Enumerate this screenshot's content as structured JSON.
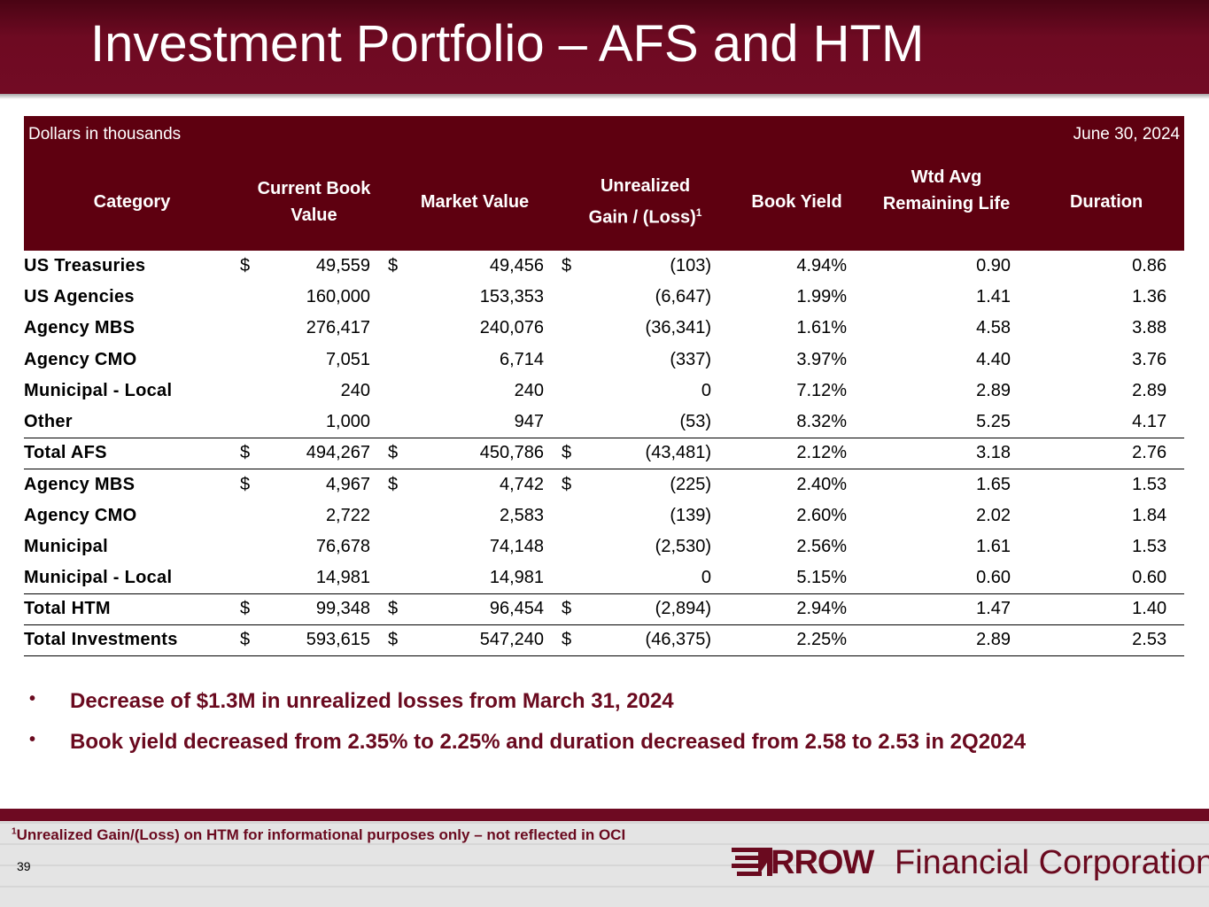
{
  "title": "Investment Portfolio – AFS and HTM",
  "table": {
    "units_label": "Dollars in thousands",
    "date_label": "June 30, 2024",
    "headers": {
      "category": "Category",
      "book_value_l1": "Current Book",
      "book_value_l2": "Value",
      "market_value": "Market Value",
      "unrealized_l1": "Unrealized",
      "unrealized_l2": "Gain / (Loss)",
      "unrealized_sup": "1",
      "book_yield": "Book Yield",
      "life_l1": "Wtd Avg",
      "life_l2": "Remaining Life",
      "duration": "Duration"
    },
    "rows": [
      {
        "category": "US Treasuries",
        "d1": "$",
        "book": "49,559",
        "d2": "$",
        "market": "49,456",
        "d3": "$",
        "gain": "(103)",
        "yield": "4.94%",
        "life": "0.90",
        "duration": "0.86"
      },
      {
        "category": "US Agencies",
        "d1": "",
        "book": "160,000",
        "d2": "",
        "market": "153,353",
        "d3": "",
        "gain": "(6,647)",
        "yield": "1.99%",
        "life": "1.41",
        "duration": "1.36"
      },
      {
        "category": "Agency MBS",
        "d1": "",
        "book": "276,417",
        "d2": "",
        "market": "240,076",
        "d3": "",
        "gain": "(36,341)",
        "yield": "1.61%",
        "life": "4.58",
        "duration": "3.88"
      },
      {
        "category": "Agency CMO",
        "d1": "",
        "book": "7,051",
        "d2": "",
        "market": "6,714",
        "d3": "",
        "gain": "(337)",
        "yield": "3.97%",
        "life": "4.40",
        "duration": "3.76"
      },
      {
        "category": "Municipal - Local",
        "d1": "",
        "book": "240",
        "d2": "",
        "market": "240",
        "d3": "",
        "gain": "0",
        "yield": "7.12%",
        "life": "2.89",
        "duration": "2.89"
      },
      {
        "category": "Other",
        "d1": "",
        "book": "1,000",
        "d2": "",
        "market": "947",
        "d3": "",
        "gain": "(53)",
        "yield": "8.32%",
        "life": "5.25",
        "duration": "4.17"
      },
      {
        "category": "Total AFS",
        "d1": "$",
        "book": "494,267",
        "d2": "$",
        "market": "450,786",
        "d3": "$",
        "gain": "(43,481)",
        "yield": "2.12%",
        "life": "3.18",
        "duration": "2.76"
      },
      {
        "category": "Agency MBS",
        "d1": "$",
        "book": "4,967",
        "d2": "$",
        "market": "4,742",
        "d3": "$",
        "gain": "(225)",
        "yield": "2.40%",
        "life": "1.65",
        "duration": "1.53"
      },
      {
        "category": "Agency CMO",
        "d1": "",
        "book": "2,722",
        "d2": "",
        "market": "2,583",
        "d3": "",
        "gain": "(139)",
        "yield": "2.60%",
        "life": "2.02",
        "duration": "1.84"
      },
      {
        "category": "Municipal",
        "d1": "",
        "book": "76,678",
        "d2": "",
        "market": "74,148",
        "d3": "",
        "gain": "(2,530)",
        "yield": "2.56%",
        "life": "1.61",
        "duration": "1.53"
      },
      {
        "category": "Municipal - Local",
        "d1": "",
        "book": "14,981",
        "d2": "",
        "market": "14,981",
        "d3": "",
        "gain": "0",
        "yield": "5.15%",
        "life": "0.60",
        "duration": "0.60"
      },
      {
        "category": "Total HTM",
        "d1": "$",
        "book": "99,348",
        "d2": "$",
        "market": "96,454",
        "d3": "$",
        "gain": "(2,894)",
        "yield": "2.94%",
        "life": "1.47",
        "duration": "1.40"
      },
      {
        "category": "Total Investments",
        "d1": "$",
        "book": "593,615",
        "d2": "$",
        "market": "547,240",
        "d3": "$",
        "gain": "(46,375)",
        "yield": "2.25%",
        "life": "2.89",
        "duration": "2.53"
      }
    ]
  },
  "bullets": {
    "b1": "Decrease of $1.3M in unrealized losses from March 31, 2024",
    "b2": "Book yield decreased from 2.35% to 2.25% and duration decreased from 2.58 to 2.53 in 2Q2024",
    "marker": "•"
  },
  "footnote": {
    "sup": "1",
    "text": "Unrealized Gain/(Loss) on HTM for informational purposes only – not reflected in OCI"
  },
  "page_number": "39",
  "logo": {
    "rrow": "RROW",
    "text": "Financial Corporation",
    "color": "#6a0a1f"
  }
}
